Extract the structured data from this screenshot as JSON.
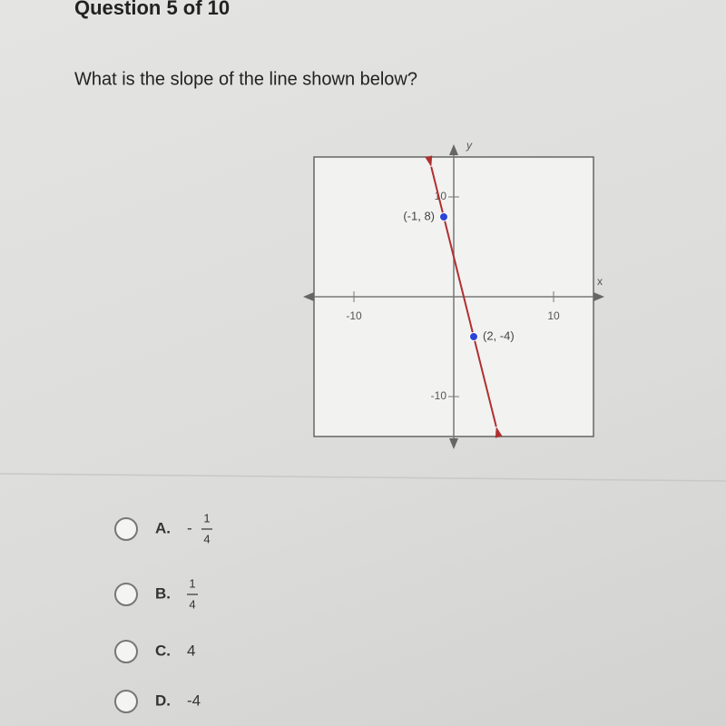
{
  "header": {
    "title": "Question 5 of 10"
  },
  "question": "What is the slope of the line shown below?",
  "graph": {
    "x_label": "x",
    "y_label": "y",
    "xlim": [
      -14,
      14
    ],
    "ylim": [
      -14,
      14
    ],
    "xticks": [
      -10,
      10
    ],
    "yticks": [
      10,
      -10
    ],
    "points": [
      {
        "x": -1,
        "y": 8,
        "label": "(-1, 8)"
      },
      {
        "x": 2,
        "y": -4,
        "label": "(2, -4)"
      }
    ],
    "line_color": "#b03030",
    "point_color": "#2a45d6"
  },
  "choices": [
    {
      "letter": "A.",
      "sign": "-",
      "numerator": "1",
      "denominator": "4"
    },
    {
      "letter": "B.",
      "numerator": "1",
      "denominator": "4"
    },
    {
      "letter": "C.",
      "text": "4"
    },
    {
      "letter": "D.",
      "text": "-4"
    }
  ]
}
